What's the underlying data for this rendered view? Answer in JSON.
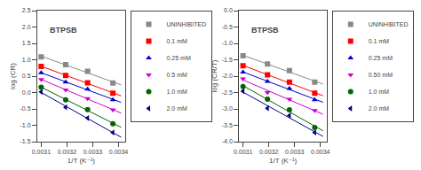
{
  "chart_data": [
    {
      "type": "scatter",
      "title": "BTPSB",
      "x_label": "1/T (K⁻¹)",
      "y_label": "log (CR)",
      "xlim": [
        0.003085,
        0.003425
      ],
      "ylim": [
        -1.5,
        2.5
      ],
      "xticks": [
        0.0031,
        0.0032,
        0.0033,
        0.0034
      ],
      "yticks": [
        -1.5,
        {
          "value": -1,
          "label": "-1.0"
        },
        -0.5,
        {
          "value": 0,
          "label": "0.0"
        },
        0.5,
        {
          "value": 1,
          "label": "1.0"
        },
        1.5,
        {
          "value": 2,
          "label": "2.0"
        },
        2.5
      ],
      "grid": false,
      "legend": "upper right",
      "x": [
        0.0031,
        0.003195,
        0.00328,
        0.003378
      ],
      "series": [
        {
          "name": "UNINHIBITED",
          "color": "#888888",
          "marker": "square",
          "values": [
            1.09,
            0.85,
            0.65,
            0.29
          ],
          "fit": {
            "x": [
              0.0031,
              0.00341
            ],
            "values": [
              1.1119,
              0.2331
            ]
          }
        },
        {
          "name": "0.1 mM",
          "color": "#ff0000",
          "marker": "square",
          "values": [
            0.8,
            0.52,
            0.3,
            -0.02
          ],
          "fit": {
            "x": [
              0.0031,
              0.00341
            ],
            "values": [
              0.8036,
              -0.1014
            ]
          }
        },
        {
          "name": "0.25 mM",
          "color": "#0000cc",
          "marker": "triangle-up",
          "values": [
            0.6,
            0.32,
            0.1,
            -0.22
          ],
          "fit": {
            "x": [
              0.0031,
              0.00341
            ],
            "values": [
              0.6036,
              -0.3014
            ]
          }
        },
        {
          "name": "0.5 mM",
          "color": "#cc00cc",
          "marker": "triangle-down",
          "values": [
            0.4,
            0.08,
            -0.18,
            -0.53
          ],
          "fit": {
            "x": [
              0.0031,
              0.00341
            ],
            "values": [
              0.4017,
              -0.6279
            ]
          }
        },
        {
          "name": "1.0 mM",
          "color": "#006600",
          "marker": "circle",
          "values": [
            0.16,
            -0.22,
            -0.52,
            -0.95
          ],
          "fit": {
            "x": [
              0.0031,
              0.00341
            ],
            "values": [
              0.1641,
              -1.0616
            ]
          }
        },
        {
          "name": "2.0 mM",
          "color": "#000080",
          "marker": "triangle-left",
          "values": [
            0.02,
            -0.45,
            -0.78,
            -1.22
          ],
          "fit": {
            "x": [
              0.0031,
              0.00341
            ],
            "values": [
              0.0022,
              -1.365
            ]
          }
        }
      ]
    },
    {
      "type": "scatter",
      "title": "BTPSB",
      "x_label": "1/T (K⁻¹)",
      "y_label": "log (CR/T)",
      "xlim": [
        0.003085,
        0.003425
      ],
      "ylim": [
        -4,
        0
      ],
      "xticks": [
        0.0031,
        0.0032,
        0.0033,
        0.0034
      ],
      "yticks": [
        {
          "value": -4,
          "label": "-4.0"
        },
        -3.5,
        {
          "value": -3,
          "label": "-3.0"
        },
        -2.5,
        {
          "value": -2,
          "label": "-2.0"
        },
        -1.5,
        {
          "value": -1,
          "label": "-1.0"
        },
        -0.5,
        {
          "value": 0,
          "label": "0.0"
        }
      ],
      "grid": false,
      "legend": "upper right",
      "x": [
        0.0031,
        0.003195,
        0.00328,
        0.003378
      ],
      "series": [
        {
          "name": "UNINHIBITED",
          "color": "#888888",
          "marker": "square",
          "values": [
            -1.38,
            -1.63,
            -1.83,
            -2.18
          ],
          "fit": {
            "x": [
              0.0031,
              0.00341
            ],
            "values": [
              -1.3631,
              -2.2418
            ]
          }
        },
        {
          "name": "0.1 mM",
          "color": "#ff0000",
          "marker": "square",
          "values": [
            -1.68,
            -1.96,
            -2.18,
            -2.52
          ],
          "fit": {
            "x": [
              0.0031,
              0.00341
            ],
            "values": [
              -1.6723,
              -2.5977
            ]
          }
        },
        {
          "name": "0.25 mM",
          "color": "#0000cc",
          "marker": "triangle-up",
          "values": [
            -1.88,
            -2.16,
            -2.38,
            -2.72
          ],
          "fit": {
            "x": [
              0.0031,
              0.00341
            ],
            "values": [
              -1.8723,
              -2.7977
            ]
          }
        },
        {
          "name": "0.50 mM",
          "color": "#cc00cc",
          "marker": "triangle-down",
          "values": [
            -2.08,
            -2.5,
            -2.7,
            -3.05
          ],
          "fit": {
            "x": [
              0.0031,
              0.00341
            ],
            "values": [
              -2.1137,
              -3.1648
            ]
          }
        },
        {
          "name": "1.0 mM",
          "color": "#006600",
          "marker": "circle",
          "values": [
            -2.32,
            -2.7,
            -3.03,
            -3.57
          ],
          "fit": {
            "x": [
              0.0031,
              0.00341
            ],
            "values": [
              -2.2903,
              -3.6687
            ]
          }
        },
        {
          "name": "2.0 mM",
          "color": "#000080",
          "marker": "triangle-left",
          "values": [
            -2.46,
            -2.98,
            -3.2,
            -3.72
          ],
          "fit": {
            "x": [
              0.0031,
              0.00341
            ],
            "values": [
              -2.4864,
              -3.8398
            ]
          }
        }
      ]
    }
  ]
}
